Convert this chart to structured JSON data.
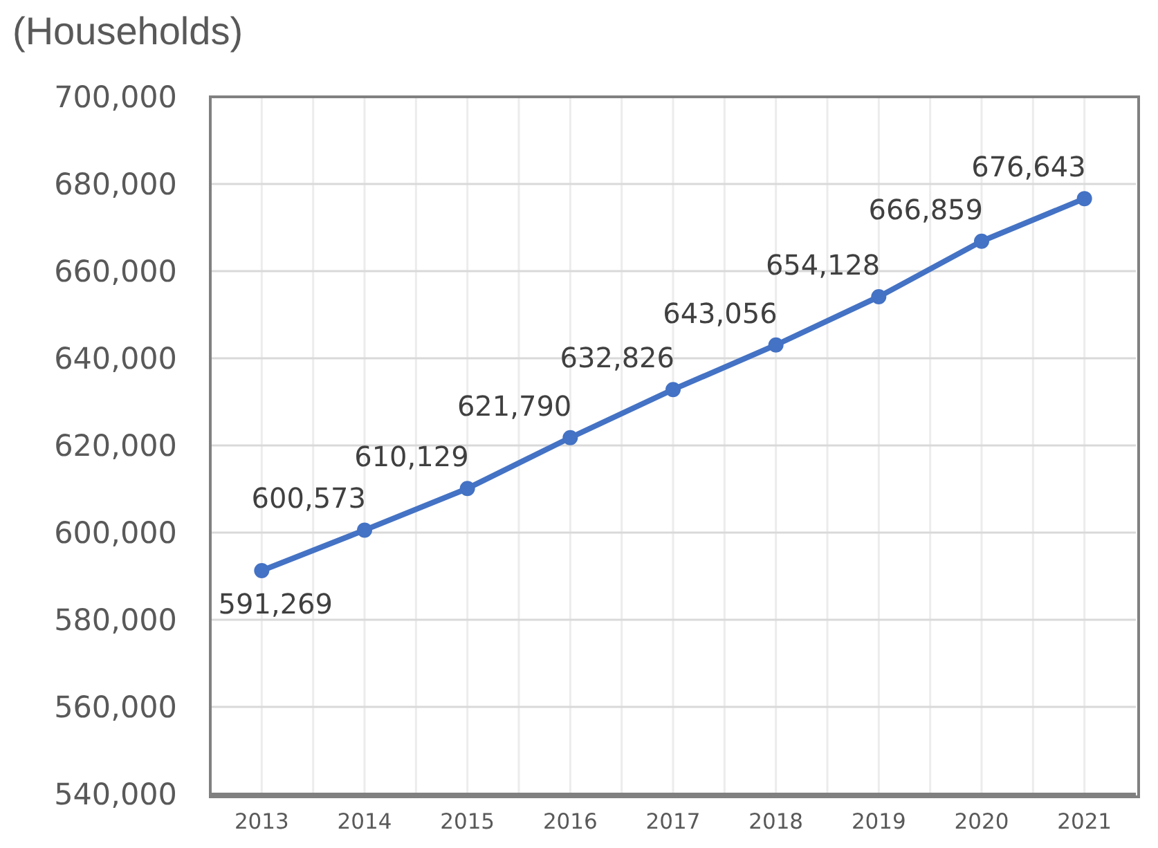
{
  "chart_data": {
    "type": "line",
    "ylabel": "(Households)",
    "categories": [
      "2013",
      "2014",
      "2015",
      "2016",
      "2017",
      "2018",
      "2019",
      "2020",
      "2021"
    ],
    "series": [
      {
        "color": "#4472c4",
        "values": [
          591269,
          600573,
          610129,
          621790,
          632826,
          643056,
          654128,
          666859,
          676643
        ],
        "value_labels": [
          "591,269",
          "600,573",
          "610,129",
          "621,790",
          "632,826",
          "643,056",
          "654,128",
          "666,859",
          "676,643"
        ]
      }
    ],
    "ylim": [
      540000,
      700000
    ],
    "yticks": [
      {
        "value": 540000,
        "label": "540,000"
      },
      {
        "value": 560000,
        "label": "560,000"
      },
      {
        "value": 580000,
        "label": "580,000"
      },
      {
        "value": 600000,
        "label": "600,000"
      },
      {
        "value": 620000,
        "label": "620,000"
      },
      {
        "value": 640000,
        "label": "640,000"
      },
      {
        "value": 660000,
        "label": "660,000"
      },
      {
        "value": 680000,
        "label": "680,000"
      },
      {
        "value": 700000,
        "label": "700,000"
      }
    ],
    "grid": true,
    "marker": "circle",
    "line_style": "solid"
  }
}
